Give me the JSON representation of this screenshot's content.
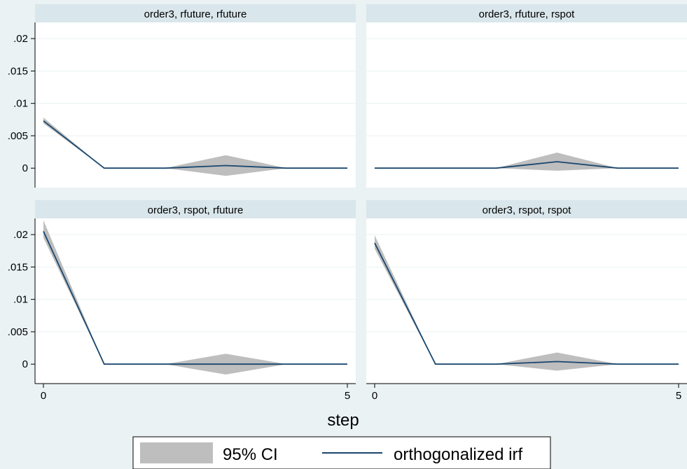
{
  "chart_data": {
    "type": "line",
    "layout": "2x2 grid of panels with shared x axis",
    "xlabel": "step",
    "xlim": [
      0,
      5
    ],
    "x_ticks": [
      0,
      5
    ],
    "ylim": [
      -0.003,
      0.0225
    ],
    "y_ticks": [
      0,
      0.005,
      0.01,
      0.015,
      0.02
    ],
    "y_tick_labels": [
      "0",
      ".005",
      ".01",
      ".015",
      ".02"
    ],
    "grid": true,
    "legend": {
      "position": "bottom-center",
      "entries": [
        {
          "label": "95% CI",
          "kind": "band",
          "color": "#bebebe"
        },
        {
          "label": "orthogonalized irf",
          "kind": "line",
          "color": "#1a476f"
        }
      ]
    },
    "colors": {
      "background": "#eaf2f3",
      "panel_header": "#d9e6eb",
      "ci_band": "#bebebe",
      "irf_line": "#1a476f",
      "gridline": "#eaf2f3"
    },
    "x": [
      0,
      1,
      2,
      3,
      4,
      5
    ],
    "panels": [
      {
        "title": "order3, rfuture, rfuture",
        "irf": [
          0.0073,
          0,
          0,
          0.0004,
          0,
          0
        ],
        "ci_lower": [
          0.0069,
          0,
          0,
          -0.0012,
          0,
          0
        ],
        "ci_upper": [
          0.0078,
          0,
          0,
          0.002,
          0,
          0
        ]
      },
      {
        "title": "order3, rfuture, rspot",
        "irf": [
          0,
          0,
          0,
          0.001,
          0,
          0
        ],
        "ci_lower": [
          0,
          0,
          0,
          -0.0004,
          0,
          0
        ],
        "ci_upper": [
          0,
          0,
          0,
          0.0024,
          0,
          0
        ]
      },
      {
        "title": "order3, rspot, rfuture",
        "irf": [
          0.0205,
          0,
          0,
          0,
          0,
          0
        ],
        "ci_lower": [
          0.0195,
          0,
          0,
          -0.0016,
          0,
          0
        ],
        "ci_upper": [
          0.0222,
          0,
          0,
          0.0016,
          0,
          0
        ]
      },
      {
        "title": "order3, rspot, rspot",
        "irf": [
          0.0187,
          0,
          0,
          0.0004,
          0,
          0
        ],
        "ci_lower": [
          0.0178,
          0,
          0,
          -0.001,
          0,
          0
        ],
        "ci_upper": [
          0.0199,
          0,
          0,
          0.0018,
          0,
          0
        ]
      }
    ]
  }
}
